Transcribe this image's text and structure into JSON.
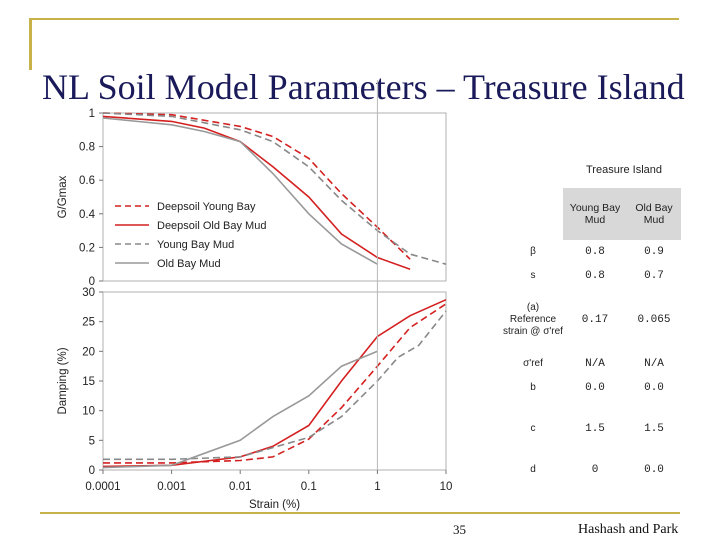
{
  "slide": {
    "title": "NL Soil Model Parameters – Treasure Island",
    "page_number": "35",
    "footer": "Hashash and Park"
  },
  "chart_data": [
    {
      "type": "line",
      "ylabel": "G/Gmax",
      "xscale": "log",
      "xlim": [
        0.0001,
        10
      ],
      "ylim": [
        0,
        1
      ],
      "yticks": [
        "0",
        "0.2",
        "0.4",
        "0.6",
        "0.8",
        "1"
      ],
      "legend_position": "lower-left",
      "series": [
        {
          "name": "Deepsoil Young Bay",
          "color": "#d42020",
          "dash": "dashed",
          "x": [
            0.0001,
            0.001,
            0.01,
            0.03,
            0.1,
            0.3,
            1,
            3
          ],
          "y": [
            1.0,
            0.99,
            0.92,
            0.86,
            0.73,
            0.52,
            0.32,
            0.13
          ]
        },
        {
          "name": "Deepsoil Old Bay Mud",
          "color": "#d42020",
          "dash": "solid",
          "x": [
            0.0001,
            0.001,
            0.003,
            0.01,
            0.03,
            0.1,
            0.3,
            1,
            3
          ],
          "y": [
            0.98,
            0.95,
            0.91,
            0.83,
            0.68,
            0.5,
            0.28,
            0.14,
            0.07
          ]
        },
        {
          "name": "Young Bay Mud",
          "color": "#888888",
          "dash": "dashed",
          "x": [
            0.0001,
            0.001,
            0.01,
            0.03,
            0.1,
            0.3,
            1,
            3,
            10
          ],
          "y": [
            1.0,
            0.98,
            0.9,
            0.83,
            0.68,
            0.48,
            0.3,
            0.16,
            0.1
          ]
        },
        {
          "name": "Old Bay Mud",
          "color": "#999999",
          "dash": "solid",
          "x": [
            0.0001,
            0.001,
            0.003,
            0.01,
            0.03,
            0.1,
            0.3,
            1
          ],
          "y": [
            0.97,
            0.93,
            0.89,
            0.83,
            0.64,
            0.4,
            0.22,
            0.1
          ]
        }
      ]
    },
    {
      "type": "line",
      "xlabel": "Strain (%)",
      "ylabel": "Damping (%)",
      "xscale": "log",
      "xlim": [
        0.0001,
        10
      ],
      "ylim": [
        0,
        30
      ],
      "xticks": [
        "0.0001",
        "0.001",
        "0.01",
        "0.1",
        "1",
        "10"
      ],
      "yticks": [
        "0",
        "5",
        "10",
        "15",
        "20",
        "25",
        "30"
      ],
      "series": [
        {
          "name": "Deepsoil Young Bay",
          "color": "#d42020",
          "dash": "dashed",
          "x": [
            0.0001,
            0.001,
            0.01,
            0.03,
            0.1,
            0.3,
            1,
            3,
            10
          ],
          "y": [
            1.2,
            1.2,
            1.6,
            2.2,
            5.2,
            10.5,
            17.5,
            24,
            28
          ]
        },
        {
          "name": "Deepsoil Old Bay Mud",
          "color": "#d42020",
          "dash": "solid",
          "x": [
            0.0001,
            0.001,
            0.01,
            0.03,
            0.1,
            0.3,
            1,
            3,
            10
          ],
          "y": [
            0.6,
            0.8,
            2.2,
            4,
            7.5,
            15,
            22.5,
            26,
            28.7
          ]
        },
        {
          "name": "Young Bay Mud",
          "color": "#888888",
          "dash": "dashed",
          "x": [
            0.0001,
            0.001,
            0.01,
            0.1,
            0.3,
            1,
            2,
            4,
            10
          ],
          "y": [
            1.8,
            1.8,
            2.2,
            5.5,
            9,
            15,
            19,
            21,
            26.8
          ]
        },
        {
          "name": "Old Bay Mud",
          "color": "#999999",
          "dash": "solid",
          "x": [
            0.0001,
            0.001,
            0.01,
            0.03,
            0.1,
            0.3,
            1
          ],
          "y": [
            0.4,
            0.8,
            5,
            9,
            12.5,
            17.5,
            20
          ]
        }
      ]
    }
  ],
  "params_table": {
    "title": "Treasure Island",
    "columns": [
      "Young Bay Mud",
      "Old Bay Mud"
    ],
    "rows": [
      {
        "label": "β",
        "young": "0.8",
        "old": "0.9"
      },
      {
        "label": "s",
        "young": "0.8",
        "old": "0.7"
      },
      {
        "label": "(a) Reference strain @ σ'ref",
        "young": "0.17",
        "old": "0.065"
      },
      {
        "label": "σ'ref",
        "young": "N/A",
        "old": "N/A"
      },
      {
        "label": "b",
        "young": "0.0",
        "old": "0.0"
      },
      {
        "label": "c",
        "young": "1.5",
        "old": "1.5"
      },
      {
        "label": "d",
        "young": "0",
        "old": "0.0"
      }
    ]
  }
}
